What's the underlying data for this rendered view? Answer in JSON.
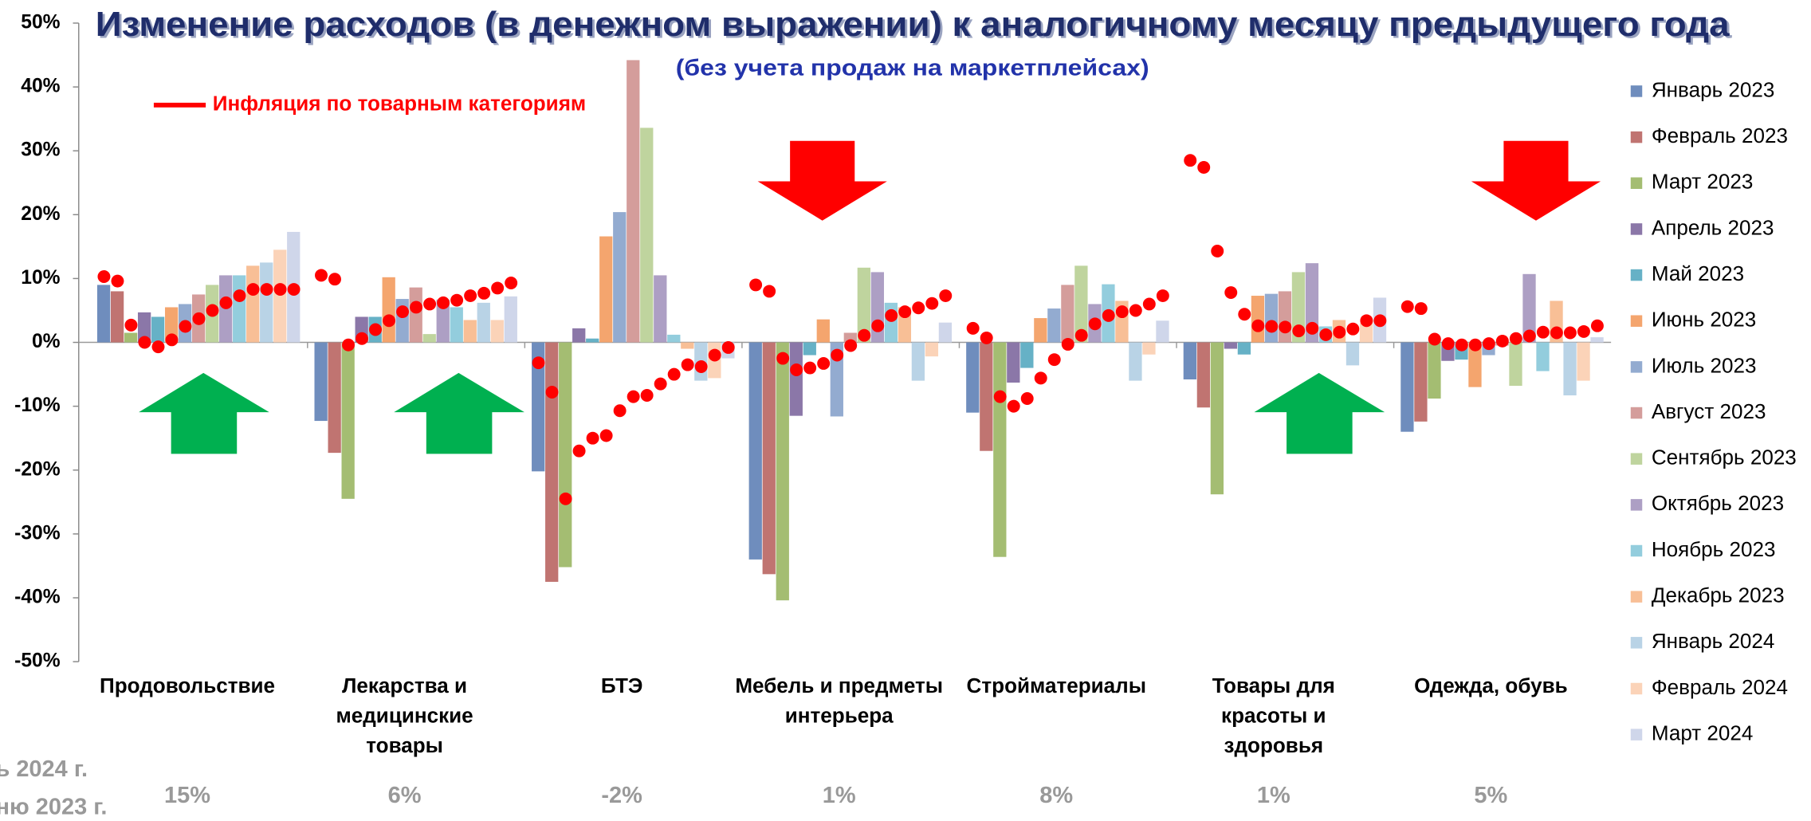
{
  "chart_data": {
    "type": "bar",
    "title": "Изменение расходов (в денежном выражении) к аналогичному месяцу предыдущего года",
    "subtitle": "(без учета продаж на маркетплейсах)",
    "categories": [
      [
        "Продовольствие"
      ],
      [
        "Лекарства и",
        "медицинские",
        "товары"
      ],
      [
        "БТЭ"
      ],
      [
        "Мебель и предметы",
        "интерьера"
      ],
      [
        "Стройматериалы"
      ],
      [
        "Товары для",
        "красоты и",
        "здоровья"
      ],
      [
        "Одежда, обувь"
      ]
    ],
    "ylim": [
      -50,
      50
    ],
    "yticks": [
      {
        "value": -50,
        "label": "-50%"
      },
      {
        "value": -40,
        "label": "-40%"
      },
      {
        "value": -30,
        "label": "-30%"
      },
      {
        "value": -20,
        "label": "-20%"
      },
      {
        "value": -10,
        "label": "-10%"
      },
      {
        "value": 0,
        "label": "0%"
      },
      {
        "value": 10,
        "label": "10%"
      },
      {
        "value": 20,
        "label": "20%"
      },
      {
        "value": 30,
        "label": "30%"
      },
      {
        "value": 40,
        "label": "40%"
      },
      {
        "value": 50,
        "label": "50%"
      }
    ],
    "legend": "right",
    "series": [
      {
        "name": "Январь 2023",
        "color": "#6f8dbd",
        "values": [
          9,
          -12.3,
          -20.2,
          -34,
          -11,
          -5.8,
          -14
        ]
      },
      {
        "name": "Февраль 2023",
        "color": "#c07471",
        "values": [
          8,
          -17.3,
          -37.5,
          -36.3,
          -17,
          -10.2,
          -12.4
        ]
      },
      {
        "name": "Март 2023",
        "color": "#a4bd72",
        "values": [
          1.5,
          -24.5,
          -35.2,
          -40.4,
          -33.6,
          -23.8,
          -8.8
        ]
      },
      {
        "name": "Апрель 2023",
        "color": "#8b77a8",
        "values": [
          4.7,
          4,
          2.2,
          -11.5,
          -6.3,
          -1,
          -2.9
        ]
      },
      {
        "name": "Май 2023",
        "color": "#66b1c6",
        "values": [
          4,
          4,
          0.6,
          -2,
          -4,
          -1.9,
          -2.7
        ]
      },
      {
        "name": "Июнь 2023",
        "color": "#f4a56e",
        "values": [
          5.5,
          10.2,
          16.6,
          3.6,
          3.8,
          7.3,
          -7
        ]
      },
      {
        "name": "Июль 2023",
        "color": "#93abd0",
        "values": [
          6,
          6.8,
          20.4,
          -11.6,
          5.3,
          7.6,
          -2
        ]
      },
      {
        "name": "Август 2023",
        "color": "#d49d9b",
        "values": [
          7.5,
          8.6,
          44.2,
          1.5,
          9,
          8,
          -0.5
        ]
      },
      {
        "name": "Сентябрь 2023",
        "color": "#bfd49e",
        "values": [
          9,
          1.3,
          33.6,
          11.7,
          12,
          11,
          -6.8
        ]
      },
      {
        "name": "Октябрь 2023",
        "color": "#ad9fc4",
        "values": [
          10.5,
          6.7,
          10.5,
          11,
          6,
          12.4,
          10.7
        ]
      },
      {
        "name": "Ноябрь 2023",
        "color": "#93cddd",
        "values": [
          10.5,
          5.5,
          1.2,
          6.2,
          9.1,
          2.5,
          -4.5
        ]
      },
      {
        "name": "Декабрь 2023",
        "color": "#f8bf96",
        "values": [
          12,
          3.5,
          -1,
          5.5,
          6.5,
          3.5,
          6.5
        ]
      },
      {
        "name": "Январь 2024",
        "color": "#b9d3e6",
        "values": [
          12.5,
          6.2,
          -6,
          -6,
          -6,
          -3.6,
          -8.3
        ]
      },
      {
        "name": "Февраль 2024",
        "color": "#fbd3b8",
        "values": [
          14.5,
          3.5,
          -5.6,
          -2.2,
          -1.9,
          3,
          -6
        ]
      },
      {
        "name": "Март 2024",
        "color": "#cfd6ea",
        "values": [
          17.3,
          7.2,
          -2.5,
          3.1,
          3.4,
          7,
          0.8
        ]
      }
    ],
    "inflation": {
      "name": "Инфляция по товарным категориям",
      "color": "#ff0000",
      "values": [
        [
          10.3,
          9.6,
          2.7,
          0,
          -0.7,
          0.4,
          2.5,
          3.7,
          5,
          6.2,
          7.3,
          8.3,
          8.3,
          8.3,
          8.3
        ],
        [
          10.5,
          9.9,
          -0.4,
          0.6,
          2,
          3.4,
          4.8,
          5.5,
          6,
          6.2,
          6.6,
          7.3,
          7.7,
          8.5,
          9.3
        ],
        [
          -3.2,
          -7.8,
          -24.5,
          -17,
          -15,
          -14.6,
          -10.7,
          -8.5,
          -8.3,
          -6.5,
          -5,
          -3.5,
          -3.8,
          -2,
          -0.8
        ],
        [
          9,
          8,
          -2.5,
          -4.3,
          -4,
          -3.3,
          -2,
          -0.5,
          1.1,
          2.6,
          4.2,
          4.8,
          5.4,
          6.1,
          7.3
        ],
        [
          2.2,
          0.7,
          -8.5,
          -10,
          -8.8,
          -5.6,
          -2.7,
          -0.3,
          1.1,
          2.9,
          4.2,
          4.8,
          5,
          6,
          7.3
        ],
        [
          28.5,
          27.4,
          14.3,
          7.8,
          4.4,
          2.6,
          2.5,
          2.4,
          1.8,
          2.2,
          1.2,
          1.6,
          2.1,
          3.4,
          3.4
        ],
        [
          5.6,
          5.3,
          0.5,
          -0.2,
          -0.4,
          -0.4,
          -0.2,
          0.2,
          0.6,
          1,
          1.6,
          1.5,
          1.5,
          1.7,
          2.6
        ]
      ]
    },
    "bottom_labels": [
      "15%",
      "6%",
      "-2%",
      "1%",
      "8%",
      "1%",
      "5%"
    ],
    "side_labels": [
      "ь 2024 г.",
      "ню 2023 г."
    ]
  }
}
